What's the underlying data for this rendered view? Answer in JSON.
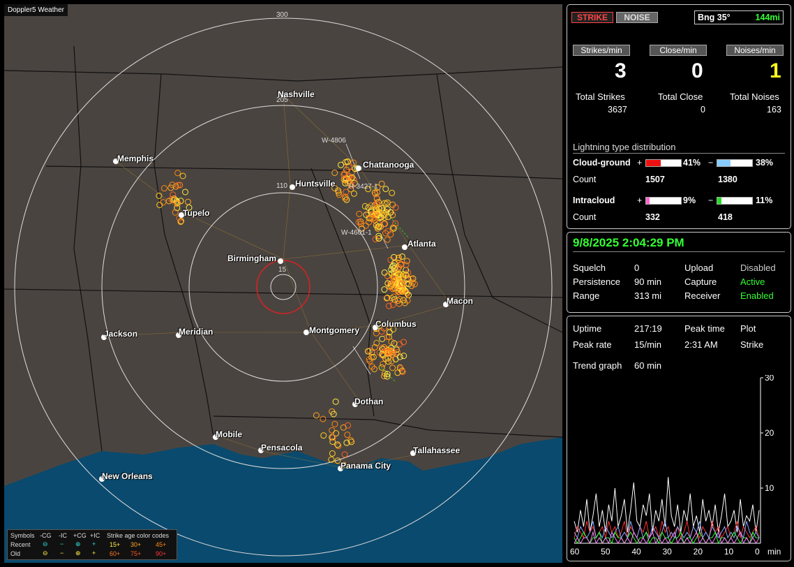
{
  "map": {
    "title": "Doppler5 Weather",
    "ring_labels": [
      "300",
      "205",
      "110",
      "15"
    ],
    "cities": [
      {
        "name": "Nashville"
      },
      {
        "name": "Memphis"
      },
      {
        "name": "Chattanooga"
      },
      {
        "name": "Huntsville"
      },
      {
        "name": "Tupelo"
      },
      {
        "name": "Birmingham"
      },
      {
        "name": "Atlanta"
      },
      {
        "name": "Macon"
      },
      {
        "name": "Columbus"
      },
      {
        "name": "Montgomery"
      },
      {
        "name": "Meridian"
      },
      {
        "name": "Jackson"
      },
      {
        "name": "Dothan"
      },
      {
        "name": "Mobile"
      },
      {
        "name": "Pensacola"
      },
      {
        "name": "Tallahassee"
      },
      {
        "name": "Panama City"
      },
      {
        "name": "New Orleans"
      }
    ],
    "storm_labels": [
      "W-4806",
      "H-3427-1",
      "W-4601-1"
    ],
    "legend": {
      "symbols": "Symbols",
      "neg_cg": "-CG",
      "neg_ic": "-IC",
      "pos_cg": "+CG",
      "pos_ic": "+IC",
      "age_title": "Strike age color codes",
      "recent": "Recent",
      "old": "Old",
      "ages_recent": [
        "15+",
        "30+",
        "45+"
      ],
      "ages_old": [
        "60+",
        "75+",
        "90+"
      ]
    }
  },
  "mode": {
    "strike": "STRIKE",
    "noise": "NOISE",
    "bearing": "Bng 35°",
    "distance": "144mi"
  },
  "rates": {
    "strikes_label": "Strikes/min",
    "close_label": "Close/min",
    "noises_label": "Noises/min",
    "strikes": "3",
    "close": "0",
    "noises": "1"
  },
  "totals": {
    "strikes_label": "Total Strikes",
    "close_label": "Total Close",
    "noises_label": "Total Noises",
    "strikes": "3637",
    "close": "0",
    "noises": "163"
  },
  "distribution": {
    "title": "Lightning type distribution",
    "cg_label": "Cloud-ground",
    "ic_label": "Intracloud",
    "count_label": "Count",
    "plus": "+",
    "minus": "−",
    "cg_pos_pct": "41%",
    "cg_neg_pct": "38%",
    "cg_pos_count": "1507",
    "cg_neg_count": "1380",
    "ic_pos_pct": "9%",
    "ic_neg_pct": "11%",
    "ic_pos_count": "332",
    "ic_neg_count": "418",
    "cg_pos_frac": 0.41,
    "cg_neg_frac": 0.38,
    "ic_pos_frac": 0.09,
    "ic_neg_frac": 0.11,
    "colors": {
      "cg_pos": "#ee1111",
      "cg_neg": "#88ccff",
      "ic_pos": "#ff66cc",
      "ic_neg": "#22dd22"
    }
  },
  "status": {
    "datetime": "9/8/2025 2:04:29 PM",
    "squelch_label": "Squelch",
    "squelch": "0",
    "upload_label": "Upload",
    "upload": "Disabled",
    "persistence_label": "Persistence",
    "persistence": "90 min",
    "capture_label": "Capture",
    "capture": "Active",
    "range_label": "Range",
    "range": "313 mi",
    "receiver_label": "Receiver",
    "receiver": "Enabled"
  },
  "stats": {
    "uptime_label": "Uptime",
    "uptime": "217:19",
    "peaktime_label": "Peak time",
    "peaktime": "2:31 AM",
    "plot_label": "Plot",
    "plot": "Strike",
    "peakrate_label": "Peak rate",
    "peakrate": "15/min",
    "trend_label": "Trend graph",
    "trend": "60 min"
  },
  "chart_data": {
    "type": "line",
    "x_ticks": [
      "60",
      "50",
      "40",
      "30",
      "20",
      "10",
      "0"
    ],
    "x_unit": "min",
    "y_ticks": [
      "30",
      "20",
      "10"
    ],
    "ylim": [
      0,
      30
    ],
    "xlim": [
      60,
      0
    ],
    "series": [
      {
        "color": "#ffffff",
        "values": [
          4,
          2,
          6,
          3,
          8,
          2,
          5,
          9,
          3,
          6,
          2,
          7,
          4,
          10,
          3,
          5,
          8,
          2,
          6,
          11,
          4,
          3,
          7,
          5,
          9,
          2,
          6,
          4,
          8,
          3,
          12,
          5,
          3,
          7,
          2,
          6,
          4,
          9,
          3,
          5,
          2,
          8,
          4,
          6,
          3,
          7,
          2,
          5,
          9,
          3,
          4,
          6,
          2,
          8,
          3,
          5,
          4,
          7,
          2,
          6
        ]
      },
      {
        "color": "#ff3333",
        "values": [
          1,
          3,
          2,
          1,
          4,
          2,
          3,
          1,
          2,
          3,
          1,
          4,
          2,
          3,
          1,
          2,
          4,
          1,
          3,
          2,
          1,
          3,
          2,
          4,
          1,
          2,
          3,
          1,
          4,
          2,
          3,
          1,
          2,
          3,
          1,
          2,
          4,
          1,
          3,
          2,
          1,
          3,
          2,
          1,
          4,
          2,
          3,
          1,
          2,
          3,
          1,
          2,
          4,
          1,
          3,
          2,
          1,
          2,
          3,
          1
        ]
      },
      {
        "color": "#88aaff",
        "values": [
          2,
          1,
          3,
          2,
          1,
          2,
          4,
          1,
          2,
          1,
          3,
          2,
          1,
          2,
          3,
          1,
          2,
          1,
          4,
          2,
          1,
          3,
          1,
          2,
          1,
          3,
          2,
          1,
          2,
          4,
          1,
          2,
          1,
          3,
          2,
          1,
          2,
          1,
          3,
          2,
          4,
          1,
          2,
          1,
          3,
          2,
          1,
          2,
          3,
          1,
          2,
          1,
          3,
          2,
          1,
          4,
          2,
          1,
          2,
          1
        ]
      },
      {
        "color": "#33ff33",
        "values": [
          1,
          0,
          1,
          2,
          1,
          0,
          1,
          1,
          2,
          0,
          1,
          1,
          0,
          2,
          1,
          1,
          0,
          1,
          2,
          1,
          0,
          1,
          1,
          2,
          0,
          1,
          1,
          0,
          2,
          1,
          1,
          0,
          1,
          1,
          2,
          0,
          1,
          1,
          0,
          1,
          2,
          1,
          0,
          1,
          1,
          2,
          0,
          1,
          1,
          0,
          1,
          2,
          1,
          0,
          1,
          1,
          0,
          2,
          1,
          1
        ]
      },
      {
        "color": "#ff88ff",
        "values": [
          0,
          1,
          0,
          1,
          1,
          0,
          2,
          0,
          1,
          0,
          1,
          0,
          2,
          1,
          0,
          1,
          0,
          1,
          0,
          2,
          1,
          0,
          1,
          0,
          1,
          2,
          0,
          1,
          0,
          1,
          0,
          1,
          2,
          0,
          1,
          0,
          1,
          0,
          1,
          2,
          0,
          1,
          0,
          1,
          0,
          1,
          2,
          0,
          1,
          0,
          1,
          0,
          1,
          2,
          0,
          1,
          0,
          1,
          0,
          1
        ]
      }
    ]
  }
}
